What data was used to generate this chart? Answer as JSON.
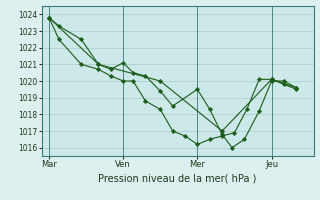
{
  "plot_bg_color": "#cce8e8",
  "fig_bg_color": "#ddf0f0",
  "grid_color": "#aacccc",
  "line_color": "#1a5c1a",
  "marker_color": "#1a5c1a",
  "vline_color": "#4a8888",
  "xlabel": "Pression niveau de la mer( hPa )",
  "ylim": [
    1015.5,
    1024.5
  ],
  "yticks": [
    1016,
    1017,
    1018,
    1019,
    1020,
    1021,
    1022,
    1023,
    1024
  ],
  "xtick_labels": [
    "Mar",
    "Ven",
    "Mer",
    "Jeu"
  ],
  "xtick_positions": [
    0,
    3,
    6,
    9
  ],
  "vline_positions": [
    0,
    3,
    6,
    9
  ],
  "xlim": [
    -0.3,
    10.7
  ],
  "series1_x": [
    0,
    0.4,
    1.3,
    2.0,
    2.5,
    3.0,
    3.4,
    3.9,
    4.5,
    5.0,
    6.0,
    6.5,
    7.0,
    7.4,
    7.9,
    8.5,
    9.0,
    9.5,
    10.0
  ],
  "series1_y": [
    1023.8,
    1023.3,
    1022.5,
    1021.0,
    1020.7,
    1021.1,
    1020.5,
    1020.3,
    1019.4,
    1018.5,
    1019.5,
    1018.3,
    1016.8,
    1016.0,
    1016.5,
    1018.2,
    1020.0,
    1020.0,
    1019.6
  ],
  "series2_x": [
    0,
    0.4,
    1.3,
    2.0,
    2.5,
    3.0,
    3.4,
    3.9,
    4.5,
    5.0,
    5.5,
    6.0,
    6.5,
    7.0,
    7.5,
    8.0,
    8.5,
    9.0,
    9.5,
    10.0
  ],
  "series2_y": [
    1023.8,
    1022.5,
    1021.0,
    1020.7,
    1020.3,
    1020.0,
    1020.0,
    1018.8,
    1018.3,
    1017.0,
    1016.7,
    1016.2,
    1016.5,
    1016.7,
    1016.9,
    1018.3,
    1020.1,
    1020.1,
    1019.8,
    1019.5
  ],
  "series3_x": [
    0,
    2.0,
    4.5,
    7.0,
    9.0,
    10.0
  ],
  "series3_y": [
    1023.8,
    1021.0,
    1020.0,
    1017.0,
    1020.1,
    1019.6
  ]
}
